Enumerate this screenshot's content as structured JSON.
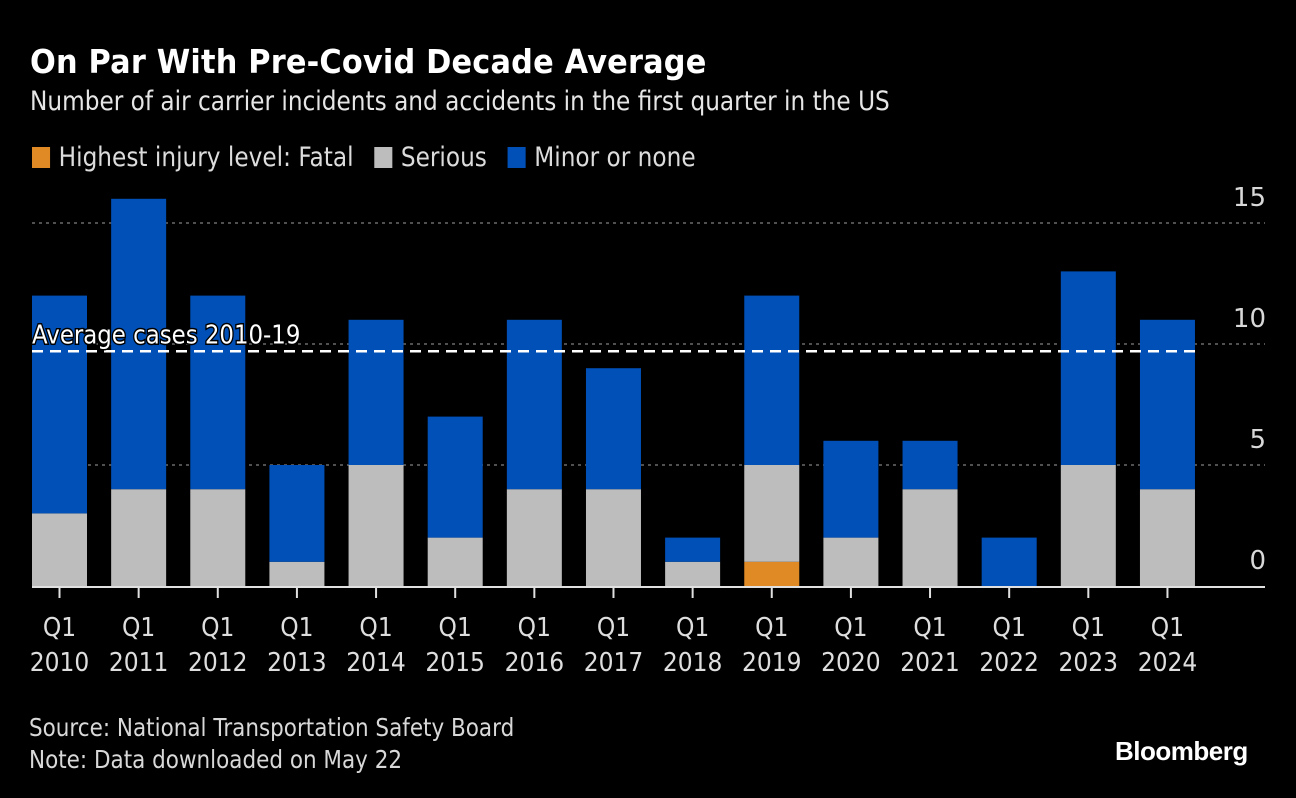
{
  "chart_data": {
    "type": "bar",
    "stacked": true,
    "title": "On Par With Pre-Covid Decade Average",
    "subtitle": "Number of air carrier incidents and accidents in the first quarter in the US",
    "xlabel": "",
    "ylabel": "",
    "ylim": [
      0,
      16
    ],
    "yticks": [
      0,
      5,
      10,
      15
    ],
    "grid": true,
    "legend_position": "top-left",
    "categories": [
      [
        "Q1",
        "2010"
      ],
      [
        "Q1",
        "2011"
      ],
      [
        "Q1",
        "2012"
      ],
      [
        "Q1",
        "2013"
      ],
      [
        "Q1",
        "2014"
      ],
      [
        "Q1",
        "2015"
      ],
      [
        "Q1",
        "2016"
      ],
      [
        "Q1",
        "2017"
      ],
      [
        "Q1",
        "2018"
      ],
      [
        "Q1",
        "2019"
      ],
      [
        "Q1",
        "2020"
      ],
      [
        "Q1",
        "2021"
      ],
      [
        "Q1",
        "2022"
      ],
      [
        "Q1",
        "2023"
      ],
      [
        "Q1",
        "2024"
      ]
    ],
    "series": [
      {
        "name": "Highest injury level: Fatal",
        "color": "#e08a26",
        "values": [
          0,
          0,
          0,
          0,
          0,
          0,
          0,
          0,
          0,
          1,
          0,
          0,
          0,
          0,
          0
        ]
      },
      {
        "name": "Serious",
        "color": "#bdbdbd",
        "values": [
          3,
          4,
          4,
          1,
          5,
          2,
          4,
          4,
          1,
          4,
          2,
          4,
          0,
          5,
          4
        ]
      },
      {
        "name": "Minor or none",
        "color": "#0050b8",
        "values": [
          9,
          12,
          8,
          4,
          6,
          5,
          7,
          5,
          1,
          7,
          4,
          2,
          2,
          8,
          7
        ]
      }
    ],
    "annotations": [
      {
        "type": "hline",
        "label": "Average cases 2010-19",
        "value": 9.7,
        "style": "dashed",
        "color": "#ffffff"
      }
    ]
  },
  "footer": {
    "source": "Source: National Transportation Safety Board",
    "note": "Note: Data downloaded on May 22",
    "brand": "Bloomberg"
  }
}
